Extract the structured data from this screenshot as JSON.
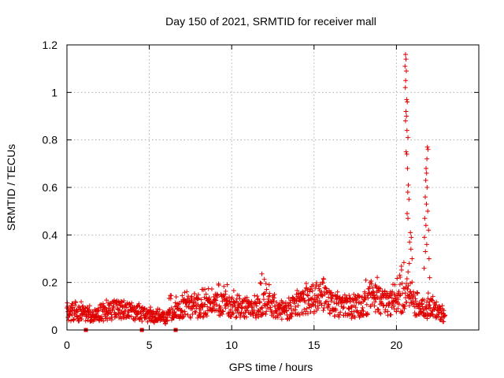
{
  "chart_data": {
    "type": "scatter",
    "title": "Day 150 of 2021, SRMTID for receiver mall",
    "xlabel": "GPS time / hours",
    "ylabel": "SRMTID / TECUs",
    "xlim": [
      0,
      25
    ],
    "ylim": [
      0,
      1.2
    ],
    "xticks": [
      "0",
      "5",
      "10",
      "15",
      "20"
    ],
    "xtick_values": [
      0,
      5,
      10,
      15,
      20
    ],
    "yticks": [
      "0",
      "0.2",
      "0.4",
      "0.6",
      "0.8",
      "1",
      "1.2"
    ],
    "ytick_values": [
      0,
      0.2,
      0.4,
      0.6,
      0.8,
      1.0,
      1.2
    ],
    "grid": true,
    "marker": "+",
    "color": "#e00000",
    "baseline_markers_x": [
      1.15,
      4.55,
      6.6
    ],
    "series": [
      {
        "name": "SRMTID",
        "profile_hours": [
          0,
          0.5,
          1,
          1.5,
          2,
          2.5,
          3,
          3.5,
          4,
          4.5,
          5,
          5.5,
          6,
          6.5,
          7,
          7.5,
          8,
          8.5,
          9,
          9.5,
          10,
          10.5,
          11,
          11.5,
          12,
          12.5,
          13,
          13.5,
          14,
          14.5,
          15,
          15.5,
          16,
          16.5,
          17,
          17.5,
          18,
          18.5,
          19,
          19.5,
          20,
          20.5,
          21,
          21.5,
          22,
          22.5,
          23
        ],
        "profile_median": [
          0.08,
          0.07,
          0.07,
          0.06,
          0.07,
          0.08,
          0.09,
          0.09,
          0.08,
          0.07,
          0.06,
          0.06,
          0.05,
          0.08,
          0.09,
          0.1,
          0.1,
          0.11,
          0.11,
          0.11,
          0.1,
          0.09,
          0.1,
          0.09,
          0.13,
          0.1,
          0.08,
          0.09,
          0.11,
          0.12,
          0.13,
          0.14,
          0.12,
          0.1,
          0.1,
          0.09,
          0.11,
          0.14,
          0.13,
          0.12,
          0.11,
          0.14,
          0.12,
          0.08,
          0.1,
          0.08,
          0.06
        ],
        "profile_max": [
          0.13,
          0.12,
          0.12,
          0.1,
          0.11,
          0.13,
          0.14,
          0.14,
          0.12,
          0.11,
          0.11,
          0.1,
          0.09,
          0.2,
          0.17,
          0.19,
          0.19,
          0.2,
          0.23,
          0.21,
          0.18,
          0.16,
          0.17,
          0.16,
          0.32,
          0.17,
          0.13,
          0.14,
          0.17,
          0.2,
          0.22,
          0.25,
          0.22,
          0.16,
          0.17,
          0.15,
          0.19,
          0.27,
          0.23,
          0.21,
          0.2,
          0.4,
          0.21,
          0.15,
          0.19,
          0.13,
          0.1
        ],
        "spikes": [
          {
            "x": 20.55,
            "y": 1.16
          },
          {
            "x": 20.58,
            "y": 1.14
          },
          {
            "x": 20.52,
            "y": 1.11
          },
          {
            "x": 20.6,
            "y": 1.09
          },
          {
            "x": 20.56,
            "y": 1.05
          },
          {
            "x": 20.54,
            "y": 1.02
          },
          {
            "x": 20.62,
            "y": 0.97
          },
          {
            "x": 20.66,
            "y": 0.96
          },
          {
            "x": 20.58,
            "y": 0.92
          },
          {
            "x": 20.61,
            "y": 0.9
          },
          {
            "x": 20.55,
            "y": 0.88
          },
          {
            "x": 20.64,
            "y": 0.84
          },
          {
            "x": 20.7,
            "y": 0.81
          },
          {
            "x": 20.59,
            "y": 0.75
          },
          {
            "x": 20.63,
            "y": 0.74
          },
          {
            "x": 20.67,
            "y": 0.68
          },
          {
            "x": 20.72,
            "y": 0.61
          },
          {
            "x": 20.69,
            "y": 0.58
          },
          {
            "x": 20.76,
            "y": 0.55
          },
          {
            "x": 20.65,
            "y": 0.49
          },
          {
            "x": 20.7,
            "y": 0.47
          },
          {
            "x": 20.85,
            "y": 0.41
          },
          {
            "x": 20.9,
            "y": 0.39
          },
          {
            "x": 20.8,
            "y": 0.37
          },
          {
            "x": 20.88,
            "y": 0.34
          },
          {
            "x": 20.95,
            "y": 0.3
          },
          {
            "x": 20.78,
            "y": 0.28
          },
          {
            "x": 21.88,
            "y": 0.77
          },
          {
            "x": 21.92,
            "y": 0.76
          },
          {
            "x": 21.85,
            "y": 0.72
          },
          {
            "x": 21.8,
            "y": 0.68
          },
          {
            "x": 21.83,
            "y": 0.66
          },
          {
            "x": 21.78,
            "y": 0.63
          },
          {
            "x": 21.86,
            "y": 0.6
          },
          {
            "x": 21.75,
            "y": 0.56
          },
          {
            "x": 21.82,
            "y": 0.53
          },
          {
            "x": 21.9,
            "y": 0.5
          },
          {
            "x": 21.72,
            "y": 0.47
          },
          {
            "x": 21.79,
            "y": 0.44
          },
          {
            "x": 21.95,
            "y": 0.42
          },
          {
            "x": 21.7,
            "y": 0.39
          },
          {
            "x": 21.84,
            "y": 0.36
          },
          {
            "x": 21.76,
            "y": 0.33
          },
          {
            "x": 21.98,
            "y": 0.3
          },
          {
            "x": 21.68,
            "y": 0.26
          },
          {
            "x": 22.02,
            "y": 0.22
          }
        ]
      }
    ]
  }
}
